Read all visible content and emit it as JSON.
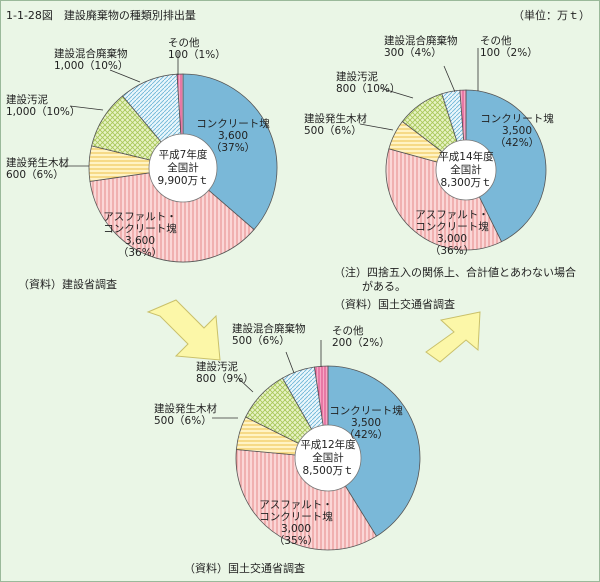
{
  "title": "1-1-28図　建設廃棄物の種類別排出量",
  "unit": "（単位：万ｔ）",
  "note_line1": "（注）四捨五入の関係上、合計値とあわない場合",
  "note_line2": "がある。",
  "chart_data": [
    {
      "type": "pie",
      "center_label": [
        "平成7年度",
        "全国計",
        "9,900万ｔ"
      ],
      "source": "（資料）建設省調査",
      "slices": [
        {
          "name": "コンクリート塊",
          "value": 3600,
          "pct": "37%",
          "label": [
            "コンクリート塊",
            "3,600",
            "（37%）"
          ],
          "color": "#7ab8d8"
        },
        {
          "name": "アスファルト・コンクリート塊",
          "value": 3600,
          "pct": "36%",
          "label": [
            "アスファルト・",
            "コンクリート塊",
            "3,600",
            "（36%）"
          ],
          "color": "#f4b3b3"
        },
        {
          "name": "建設発生木材",
          "value": 600,
          "pct": "6%",
          "label": [
            "建設発生木材",
            "600（6%）"
          ],
          "color": "#f8e08a"
        },
        {
          "name": "建設汚泥",
          "value": 1000,
          "pct": "10%",
          "label": [
            "建設汚泥",
            "1,000（10%）"
          ],
          "color": "#d2e69a"
        },
        {
          "name": "建設混合廃棄物",
          "value": 1000,
          "pct": "10%",
          "label": [
            "建設混合廃棄物",
            "1,000（10%）"
          ],
          "color": "#b9e0f0"
        },
        {
          "name": "その他",
          "value": 100,
          "pct": "1%",
          "label": [
            "その他",
            "100（1%）"
          ],
          "color": "#f07aa8"
        }
      ]
    },
    {
      "type": "pie",
      "center_label": [
        "平成14年度",
        "全国計",
        "8,300万ｔ"
      ],
      "source": "（資料）国土交通省調査",
      "slices": [
        {
          "name": "コンクリート塊",
          "value": 3500,
          "pct": "42%",
          "label": [
            "コンクリート塊",
            "3,500",
            "（42%）"
          ],
          "color": "#7ab8d8"
        },
        {
          "name": "アスファルト・コンクリート塊",
          "value": 3000,
          "pct": "36%",
          "label": [
            "アスファルト・",
            "コンクリート塊",
            "3,000",
            "（36%）"
          ],
          "color": "#f4b3b3"
        },
        {
          "name": "建設発生木材",
          "value": 500,
          "pct": "6%",
          "label": [
            "建設発生木材",
            "500（6%）"
          ],
          "color": "#f8e08a"
        },
        {
          "name": "建設汚泥",
          "value": 800,
          "pct": "10%",
          "label": [
            "建設汚泥",
            "800（10%）"
          ],
          "color": "#d2e69a"
        },
        {
          "name": "建設混合廃棄物",
          "value": 300,
          "pct": "4%",
          "label": [
            "建設混合廃棄物",
            "300（4%）"
          ],
          "color": "#b9e0f0"
        },
        {
          "name": "その他",
          "value": 100,
          "pct": "2%",
          "label": [
            "その他",
            "100（2%）"
          ],
          "color": "#f07aa8"
        }
      ]
    },
    {
      "type": "pie",
      "center_label": [
        "平成12年度",
        "全国計",
        "8,500万ｔ"
      ],
      "source": "（資料）国土交通省調査",
      "slices": [
        {
          "name": "コンクリート塊",
          "value": 3500,
          "pct": "42%",
          "label": [
            "コンクリート塊",
            "3,500",
            "（42%）"
          ],
          "color": "#7ab8d8"
        },
        {
          "name": "アスファルト・コンクリート塊",
          "value": 3000,
          "pct": "35%",
          "label": [
            "アスファルト・",
            "コンクリート塊",
            "3,000",
            "（35%）"
          ],
          "color": "#f4b3b3"
        },
        {
          "name": "建設発生木材",
          "value": 500,
          "pct": "6%",
          "label": [
            "建設発生木材",
            "500（6%）"
          ],
          "color": "#f8e08a"
        },
        {
          "name": "建設汚泥",
          "value": 800,
          "pct": "9%",
          "label": [
            "建設汚泥",
            "800（9%）"
          ],
          "color": "#d2e69a"
        },
        {
          "name": "建設混合廃棄物",
          "value": 500,
          "pct": "6%",
          "label": [
            "建設混合廃棄物",
            "500（6%）"
          ],
          "color": "#b9e0f0"
        },
        {
          "name": "その他",
          "value": 200,
          "pct": "2%",
          "label": [
            "その他",
            "200（2%）"
          ],
          "color": "#f07aa8"
        }
      ]
    }
  ]
}
